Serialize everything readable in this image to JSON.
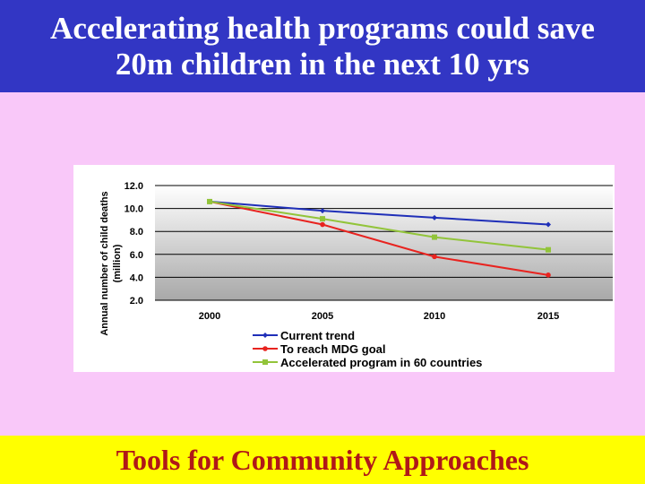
{
  "slide": {
    "title_line1": "Accelerating health programs could save",
    "title_line2": "20m children in the next 10 yrs",
    "footer": "Tools for Community Approaches",
    "colors": {
      "background": "#f9c8f9",
      "title_bar": "#3236c4",
      "footer_bar": "#ffff00",
      "footer_text": "#b01818"
    }
  },
  "chart_data": {
    "type": "line",
    "x": [
      2000,
      2005,
      2010,
      2015
    ],
    "xticks": [
      "2000",
      "2005",
      "2010",
      "2015"
    ],
    "ylim": [
      2.0,
      12.0
    ],
    "yticks": [
      "2.0",
      "4.0",
      "6.0",
      "8.0",
      "10.0",
      "12.0"
    ],
    "ylabel_line1": "Annual number of child deaths",
    "ylabel_line2": "(million)",
    "grid": true,
    "plot_background": "#c0c0c0",
    "legend_position": "bottom",
    "series": [
      {
        "name": "Current trend",
        "values": [
          10.6,
          9.8,
          9.2,
          8.6
        ],
        "color": "#1f2fb8",
        "marker": "diamond"
      },
      {
        "name": "To reach MDG goal",
        "values": [
          10.6,
          8.6,
          5.8,
          4.2
        ],
        "color": "#e8231f",
        "marker": "circle"
      },
      {
        "name": "Accelerated program in 60 countries",
        "values": [
          10.6,
          9.1,
          7.5,
          6.4
        ],
        "color": "#92c43a",
        "marker": "square"
      }
    ]
  }
}
